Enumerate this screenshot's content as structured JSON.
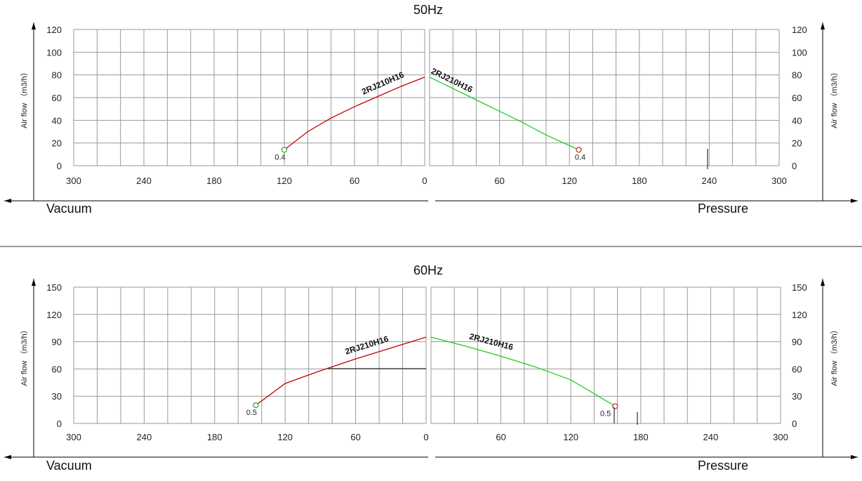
{
  "chart_data": [
    {
      "type": "line",
      "title": "50Hz",
      "ylabel": "Air flow （m3/h）",
      "vacuum_label": "Vacuum",
      "pressure_label": "Pressure",
      "yticks": [
        0,
        20,
        40,
        60,
        80,
        100,
        120
      ],
      "ylim": [
        0,
        120
      ],
      "xticks": [
        0,
        60,
        120,
        180,
        240,
        300
      ],
      "xlim": [
        0,
        300
      ],
      "grid": true,
      "vacuum_series": {
        "name": "2RJ210H16",
        "color": "#c00000",
        "points": [
          [
            0,
            78
          ],
          [
            20,
            70
          ],
          [
            40,
            61
          ],
          [
            60,
            52
          ],
          [
            80,
            42
          ],
          [
            100,
            30
          ],
          [
            120,
            14
          ]
        ],
        "end_point_label": "0.4",
        "end_marker_color": "#22aa22"
      },
      "pressure_series": {
        "name": "2RJ210H16",
        "color": "#22cc22",
        "points": [
          [
            0,
            78
          ],
          [
            20,
            68
          ],
          [
            40,
            58
          ],
          [
            60,
            48
          ],
          [
            80,
            38
          ],
          [
            100,
            27
          ],
          [
            128,
            14
          ]
        ],
        "end_point_label": "0.4",
        "end_marker_color": "#cc2222"
      }
    },
    {
      "type": "line",
      "title": "60Hz",
      "ylabel": "Air flow （m3/h）",
      "vacuum_label": "Vacuum",
      "pressure_label": "Pressure",
      "yticks": [
        0,
        30,
        60,
        90,
        120,
        150
      ],
      "ylim": [
        0,
        150
      ],
      "xticks": [
        0,
        60,
        120,
        180,
        240,
        300
      ],
      "xlim": [
        0,
        300
      ],
      "grid": true,
      "vacuum_series": {
        "name": "2RJ210H16",
        "color": "#c00000",
        "points": [
          [
            0,
            95
          ],
          [
            30,
            83
          ],
          [
            60,
            71
          ],
          [
            90,
            58
          ],
          [
            120,
            44
          ],
          [
            145,
            20
          ]
        ],
        "end_point_label": "0.5",
        "end_marker_color": "#22aa22"
      },
      "pressure_series": {
        "name": "2RJ210H16",
        "color": "#22cc22",
        "points": [
          [
            0,
            95
          ],
          [
            30,
            85
          ],
          [
            60,
            74
          ],
          [
            90,
            62
          ],
          [
            120,
            48
          ],
          [
            158,
            19
          ]
        ],
        "end_point_label": "0.5",
        "end_marker_color": "#cc2222"
      }
    }
  ]
}
